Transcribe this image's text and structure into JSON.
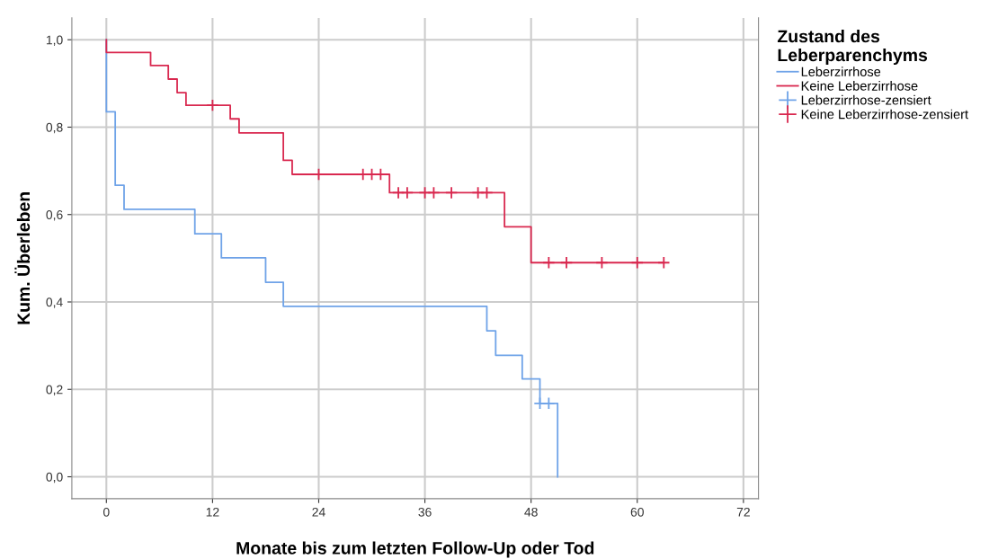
{
  "chart_data": {
    "type": "step",
    "xlabel": "Monate bis zum letzten Follow-Up oder Tod",
    "ylabel": "Kum. Überleben",
    "legend_title": "Zustand des\nLeberparenchyms",
    "series": [
      {
        "name": "Leberzirrhose",
        "color": "#6fa3e8",
        "marker": "none",
        "x": [
          0,
          0,
          1,
          2,
          10,
          13,
          18,
          20,
          43,
          44,
          47,
          49,
          51,
          51
        ],
        "values": [
          1.0,
          0.835,
          0.667,
          0.612,
          0.556,
          0.501,
          0.445,
          0.39,
          0.334,
          0.278,
          0.224,
          0.168,
          0.168,
          0.0
        ]
      },
      {
        "name": "Keine Leberzirrhose",
        "color": "#d9284f",
        "marker": "none",
        "x": [
          0,
          0,
          5,
          7,
          8,
          9,
          14,
          15,
          20,
          21,
          32,
          45,
          48,
          63
        ],
        "values": [
          1.0,
          0.971,
          0.941,
          0.91,
          0.879,
          0.85,
          0.819,
          0.787,
          0.724,
          0.692,
          0.65,
          0.572,
          0.49,
          0.49
        ]
      },
      {
        "name": "Leberzirrhose-zensiert",
        "type": "scatter",
        "color": "#6fa3e8",
        "marker": "cross",
        "x": [
          49,
          50
        ],
        "values": [
          0.168,
          0.168
        ]
      },
      {
        "name": "Keine Leberzirrhose-zensiert",
        "type": "scatter",
        "color": "#d9284f",
        "marker": "cross",
        "x": [
          12,
          24,
          29,
          30,
          31,
          33,
          34,
          36,
          37,
          39,
          42,
          43,
          50,
          52,
          56,
          60,
          63
        ],
        "values": [
          0.85,
          0.692,
          0.692,
          0.692,
          0.692,
          0.65,
          0.65,
          0.65,
          0.65,
          0.65,
          0.65,
          0.65,
          0.49,
          0.49,
          0.49,
          0.49,
          0.49
        ]
      }
    ],
    "xlim": [
      -3.9,
      73.7
    ],
    "ylim": [
      -0.05,
      1.05
    ],
    "xticks": [
      0,
      12,
      24,
      36,
      48,
      60,
      72
    ],
    "yticks": [
      {
        "value": 0,
        "label": "0,0"
      },
      {
        "value": 0.2,
        "label": "0,2"
      },
      {
        "value": 0.4,
        "label": "0,4"
      },
      {
        "value": 0.6,
        "label": "0,6"
      },
      {
        "value": 0.8,
        "label": "0,8"
      },
      {
        "value": 1.0,
        "label": "1,0"
      }
    ],
    "grid": true,
    "legend": "right"
  }
}
